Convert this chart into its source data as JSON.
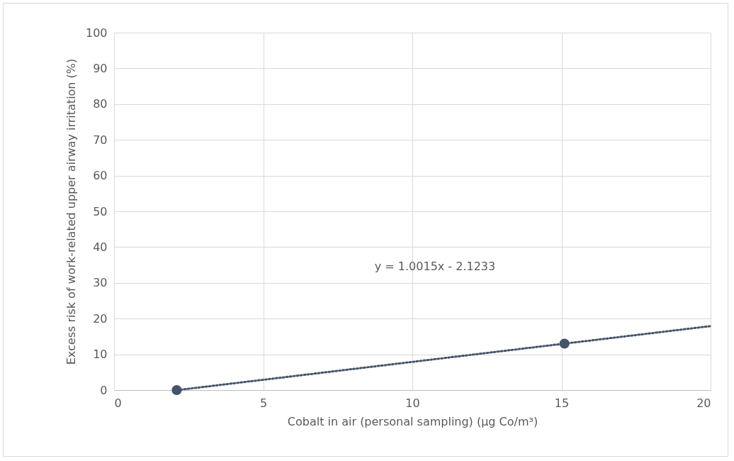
{
  "chart_data": {
    "type": "scatter",
    "xlabel": "Cobalt in air (personal sampling) (µg Co/m³)",
    "ylabel": "Excess risk of work-related upper airway irritation (%)",
    "annotations": [
      "y = 1.0015x - 2.1233"
    ],
    "series": [
      {
        "color": "#44546a",
        "x": [
          2.1,
          15.1
        ],
        "values": [
          0,
          13
        ],
        "marker": "circle"
      },
      {
        "type": "line",
        "color": "#44546a",
        "x": [
          2.12,
          20
        ],
        "values": [
          0,
          17.9
        ],
        "line_style": "dotted",
        "marker": "none"
      }
    ],
    "xlim": [
      0,
      20
    ],
    "xticks": [
      0,
      5,
      10,
      15,
      20
    ],
    "ylim": [
      0,
      100
    ],
    "yticks": [
      0,
      10,
      20,
      30,
      40,
      50,
      60,
      70,
      80,
      90,
      100
    ],
    "grid": true,
    "legend": false
  }
}
